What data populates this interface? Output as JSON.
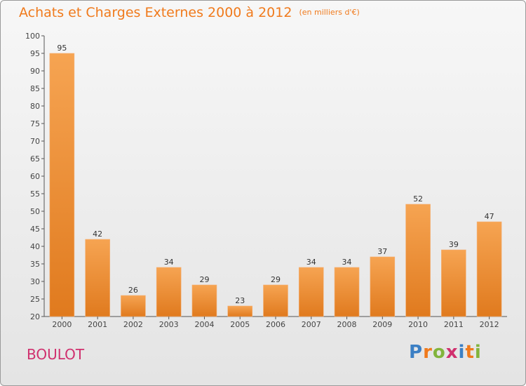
{
  "title": "Achats et Charges Externes 2000 à 2012",
  "subtitle": "(en milliers d'€)",
  "commune": "BOULOT",
  "logo": "Proxiti",
  "colors": {
    "bar": "#f08a2c",
    "bar_light": "#f5a65a",
    "title": "#f07a1c",
    "commune": "#d0306e"
  },
  "chart_data": {
    "type": "bar",
    "title": "Achats et Charges Externes 2000 à 2012",
    "subtitle": "(en milliers d'€)",
    "categories": [
      "2000",
      "2001",
      "2002",
      "2003",
      "2004",
      "2005",
      "2006",
      "2007",
      "2008",
      "2009",
      "2010",
      "2011",
      "2012"
    ],
    "values": [
      95,
      42,
      26,
      34,
      29,
      23,
      29,
      34,
      34,
      37,
      52,
      39,
      47
    ],
    "ylim": [
      20,
      100
    ],
    "yticks": [
      20,
      25,
      30,
      35,
      40,
      45,
      50,
      55,
      60,
      65,
      70,
      75,
      80,
      85,
      90,
      95,
      100
    ],
    "grid": false,
    "data_labels": true
  }
}
